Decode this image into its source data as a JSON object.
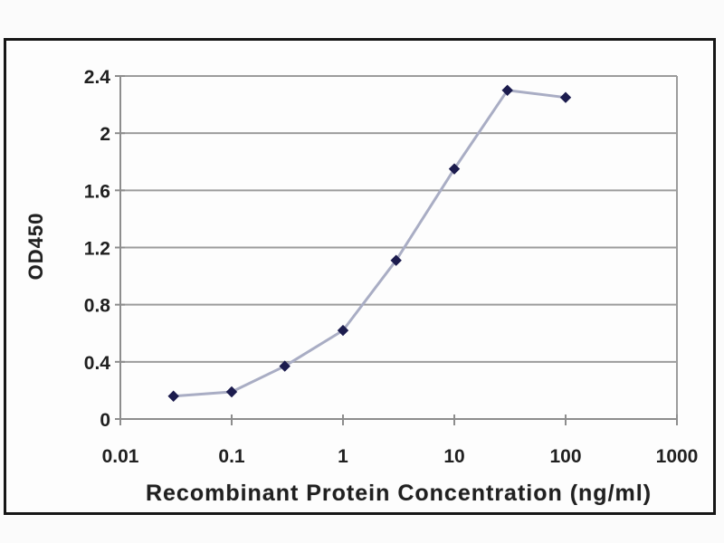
{
  "page": {
    "background": "#fbfbfb",
    "frame_border_color": "#161616"
  },
  "chart_data": {
    "type": "line",
    "title": "",
    "xlabel": "Recombinant Protein Concentration (ng/ml)",
    "ylabel": "OD450",
    "x_scale": "log",
    "xlim": [
      0.01,
      1000
    ],
    "ylim": [
      0,
      2.4
    ],
    "x_ticks": [
      0.01,
      0.1,
      1,
      10,
      100,
      1000
    ],
    "x_tick_labels": [
      "0.01",
      "0.1",
      "1",
      "10",
      "100",
      "1000"
    ],
    "y_ticks": [
      0,
      0.4,
      0.8,
      1.2,
      1.6,
      2,
      2.4
    ],
    "y_tick_labels": [
      "0",
      "0.4",
      "0.8",
      "1.2",
      "1.6",
      "2",
      "2.4"
    ],
    "grid": "horizontal-major",
    "legend_position": "none",
    "series": [
      {
        "x": [
          0.03,
          0.1,
          0.3,
          1,
          3,
          10,
          30,
          100
        ],
        "y": [
          0.16,
          0.19,
          0.37,
          0.62,
          1.11,
          1.75,
          2.3,
          2.25
        ]
      }
    ],
    "colors": {
      "line": "#a9adc4",
      "marker": "#1c1c4e",
      "gridline": "#9c9c9c",
      "axis": "#8d8d8d",
      "text": "#202020"
    }
  }
}
